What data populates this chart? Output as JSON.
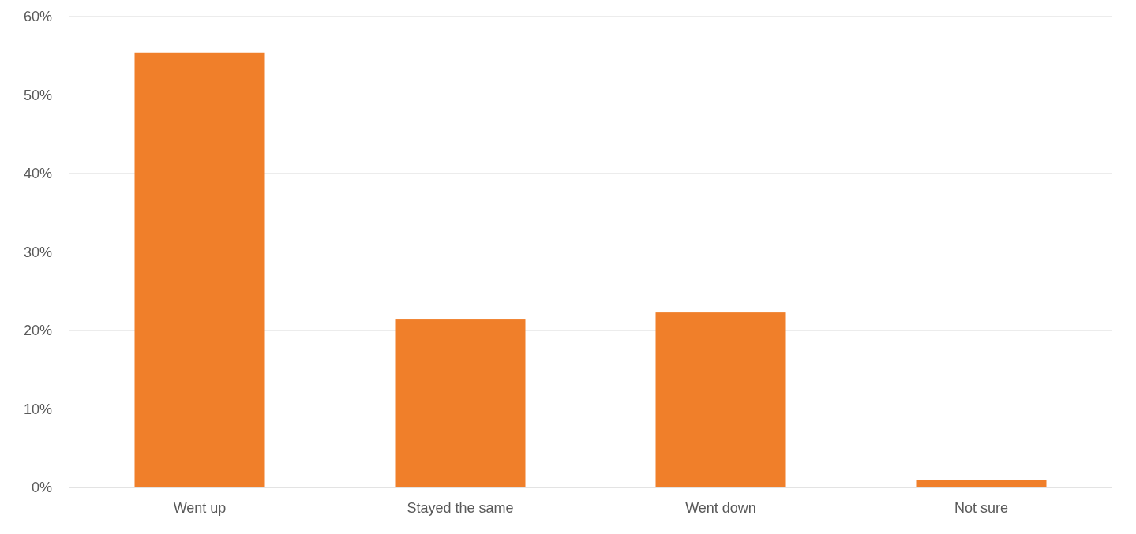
{
  "chart_data": {
    "type": "bar",
    "categories": [
      "Went up",
      "Stayed the same",
      "Went down",
      "Not sure"
    ],
    "values": [
      55.4,
      21.4,
      22.3,
      1.0
    ],
    "color": "#f07f2a",
    "ylim": [
      0,
      60
    ],
    "yticks": [
      {
        "value": 0,
        "label": "0%"
      },
      {
        "value": 10,
        "label": "10%"
      },
      {
        "value": 20,
        "label": "20%"
      },
      {
        "value": 30,
        "label": "30%"
      },
      {
        "value": 40,
        "label": "40%"
      },
      {
        "value": 50,
        "label": "50%"
      },
      {
        "value": 60,
        "label": "60%"
      }
    ],
    "grid": true
  }
}
